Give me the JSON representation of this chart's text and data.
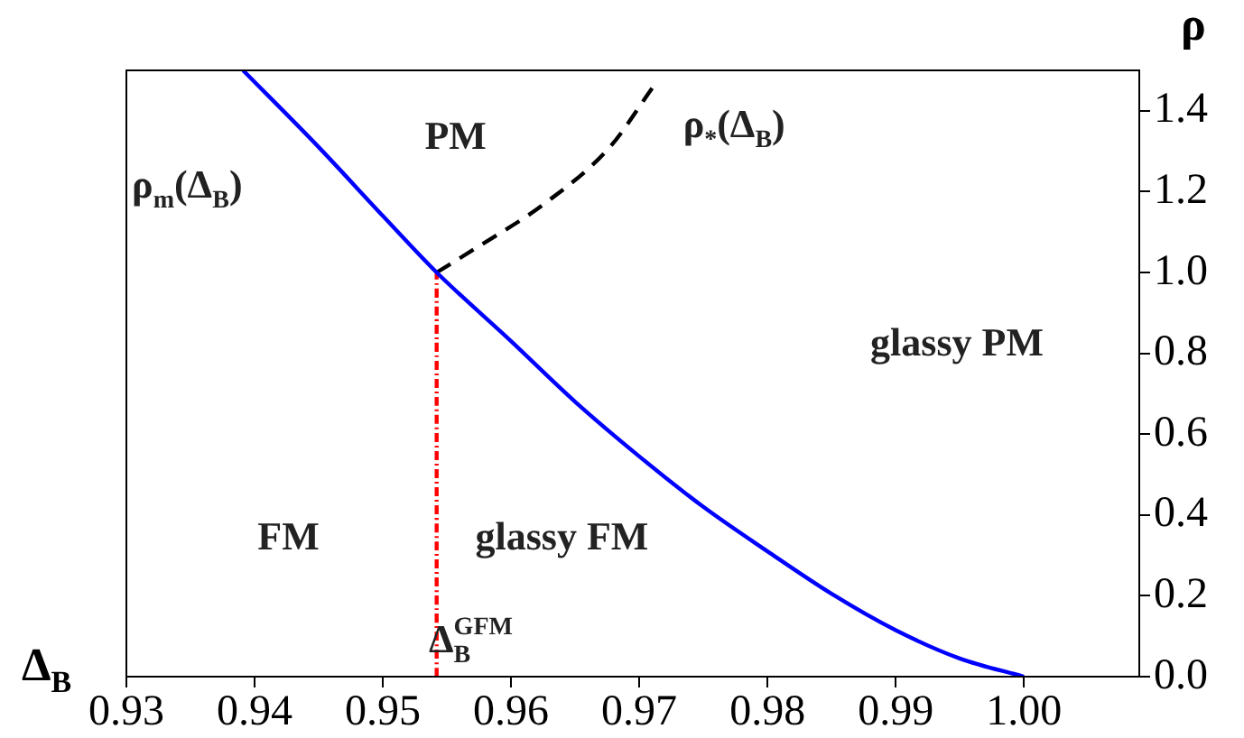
{
  "chart_data": {
    "type": "line",
    "xlabel": "Δ$_{B}$",
    "ylabel": "ρ",
    "xlim": [
      0.93,
      1.009
    ],
    "ylim": [
      0,
      1.5
    ],
    "xticks": [
      0.93,
      0.94,
      0.95,
      0.96,
      0.97,
      0.98,
      0.99,
      {
        "value": 1,
        "label": "1.00"
      }
    ],
    "yticks": [
      {
        "value": 0,
        "label": "0.0"
      },
      0.2,
      0.4,
      0.6,
      0.8,
      {
        "value": 1,
        "label": "1.0"
      },
      1.2,
      1.4
    ],
    "grid": false,
    "legend": false,
    "marker": "none",
    "series": [
      {
        "color": "#0000ff",
        "line_style": "solid",
        "x": [
          0.9391,
          0.945,
          0.95,
          0.9542,
          0.96,
          0.965,
          0.97,
          0.975,
          0.98,
          0.985,
          0.99,
          0.995,
          1.0
        ],
        "values": [
          1.5,
          1.31,
          1.14,
          1.0,
          0.83,
          0.68,
          0.545,
          0.42,
          0.31,
          0.205,
          0.115,
          0.045,
          0
        ]
      },
      {
        "color": "#000000",
        "line_style": "dashed",
        "x": [
          0.9542,
          0.9575,
          0.9626,
          0.9677,
          0.9711
        ],
        "values": [
          1.0,
          1.065,
          1.17,
          1.31,
          1.46
        ]
      },
      {
        "color": "#ff0000",
        "line_style": "dotted",
        "x": [
          0.9542,
          0.9542
        ],
        "values": [
          0,
          1.0
        ]
      }
    ],
    "annotations": [
      "PM",
      "ρ$_{m}$(Δ$_{B}$)",
      "ρ$_{*}$(Δ$_{B}$)",
      "glassy PM",
      "FM",
      "glassy FM",
      "Δ$_{B}$$^{GFM}$"
    ]
  }
}
